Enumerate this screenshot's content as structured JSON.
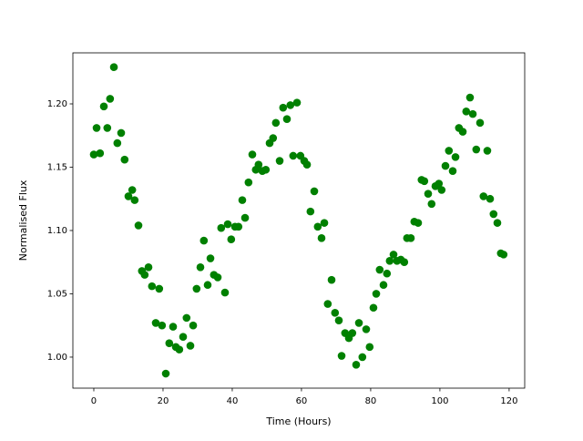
{
  "chart_data": {
    "type": "scatter",
    "xlabel": "Time (Hours)",
    "ylabel": "Normalised Flux",
    "color": "#008000",
    "x": [
      0,
      0.8,
      1.8,
      2.9,
      3.9,
      4.7,
      5.8,
      6.8,
      7.9,
      8.9,
      10,
      11.1,
      11.8,
      12.9,
      13.9,
      14.7,
      15.8,
      16.8,
      17.9,
      18.9,
      19.7,
      20.8,
      21.8,
      22.9,
      23.7,
      24.7,
      25.8,
      26.8,
      27.9,
      28.7,
      29.7,
      30.8,
      31.8,
      32.9,
      33.7,
      34.7,
      35.8,
      36.8,
      37.9,
      38.7,
      39.7,
      40.8,
      41.8,
      42.9,
      43.7,
      44.7,
      45.8,
      46.8,
      47.6,
      48.7,
      49.7,
      50.8,
      51.8,
      52.6,
      53.7,
      54.7,
      55.8,
      56.8,
      57.6,
      58.7,
      59.7,
      60.8,
      61.6,
      62.6,
      63.7,
      64.7,
      65.8,
      66.6,
      67.6,
      68.7,
      69.7,
      70.8,
      71.6,
      72.6,
      73.7,
      74.7,
      75.8,
      76.6,
      77.6,
      78.7,
      79.7,
      80.8,
      81.6,
      82.6,
      83.7,
      84.7,
      85.5,
      86.6,
      87.6,
      88.7,
      89.7,
      90.5,
      91.6,
      92.6,
      93.7,
      94.7,
      95.5,
      96.6,
      97.6,
      98.7,
      99.7,
      100.5,
      101.6,
      102.6,
      103.7,
      104.5,
      105.5,
      106.6,
      107.6,
      108.7,
      109.5,
      110.5,
      111.6,
      112.6,
      113.7,
      114.5,
      115.5,
      116.6,
      117.6,
      118.4
    ],
    "y": [
      1.16,
      1.181,
      1.161,
      1.198,
      1.181,
      1.204,
      1.229,
      1.169,
      1.177,
      1.156,
      1.127,
      1.132,
      1.124,
      1.104,
      1.068,
      1.065,
      1.071,
      1.056,
      1.027,
      1.054,
      1.025,
      0.987,
      1.011,
      1.024,
      1.008,
      1.006,
      1.016,
      1.031,
      1.009,
      1.025,
      1.054,
      1.071,
      1.092,
      1.057,
      1.078,
      1.065,
      1.063,
      1.102,
      1.051,
      1.105,
      1.093,
      1.103,
      1.103,
      1.124,
      1.11,
      1.138,
      1.16,
      1.148,
      1.152,
      1.147,
      1.148,
      1.169,
      1.173,
      1.185,
      1.155,
      1.197,
      1.188,
      1.199,
      1.159,
      1.201,
      1.159,
      1.155,
      1.152,
      1.115,
      1.131,
      1.103,
      1.094,
      1.106,
      1.042,
      1.061,
      1.035,
      1.029,
      1.001,
      1.019,
      1.015,
      1.019,
      0.994,
      1.027,
      1.0,
      1.022,
      1.008,
      1.039,
      1.05,
      1.069,
      1.057,
      1.066,
      1.076,
      1.081,
      1.076,
      1.077,
      1.075,
      1.094,
      1.094,
      1.107,
      1.106,
      1.14,
      1.139,
      1.129,
      1.121,
      1.135,
      1.137,
      1.132,
      1.151,
      1.163,
      1.147,
      1.158,
      1.181,
      1.178,
      1.194,
      1.205,
      1.192,
      1.164,
      1.185,
      1.127,
      1.163,
      1.125,
      1.113,
      1.106,
      1.082,
      1.081
    ],
    "xlim": [
      -6.05,
      124.5
    ],
    "ylim": [
      0.9755,
      1.2403
    ],
    "xticks": [
      0,
      20,
      40,
      60,
      80,
      100,
      120
    ],
    "yticks": [
      {
        "value": 1,
        "label": "1.00"
      },
      1.05,
      {
        "value": 1.1,
        "label": "1.10"
      },
      1.15,
      {
        "value": 1.2,
        "label": "1.20"
      }
    ]
  }
}
